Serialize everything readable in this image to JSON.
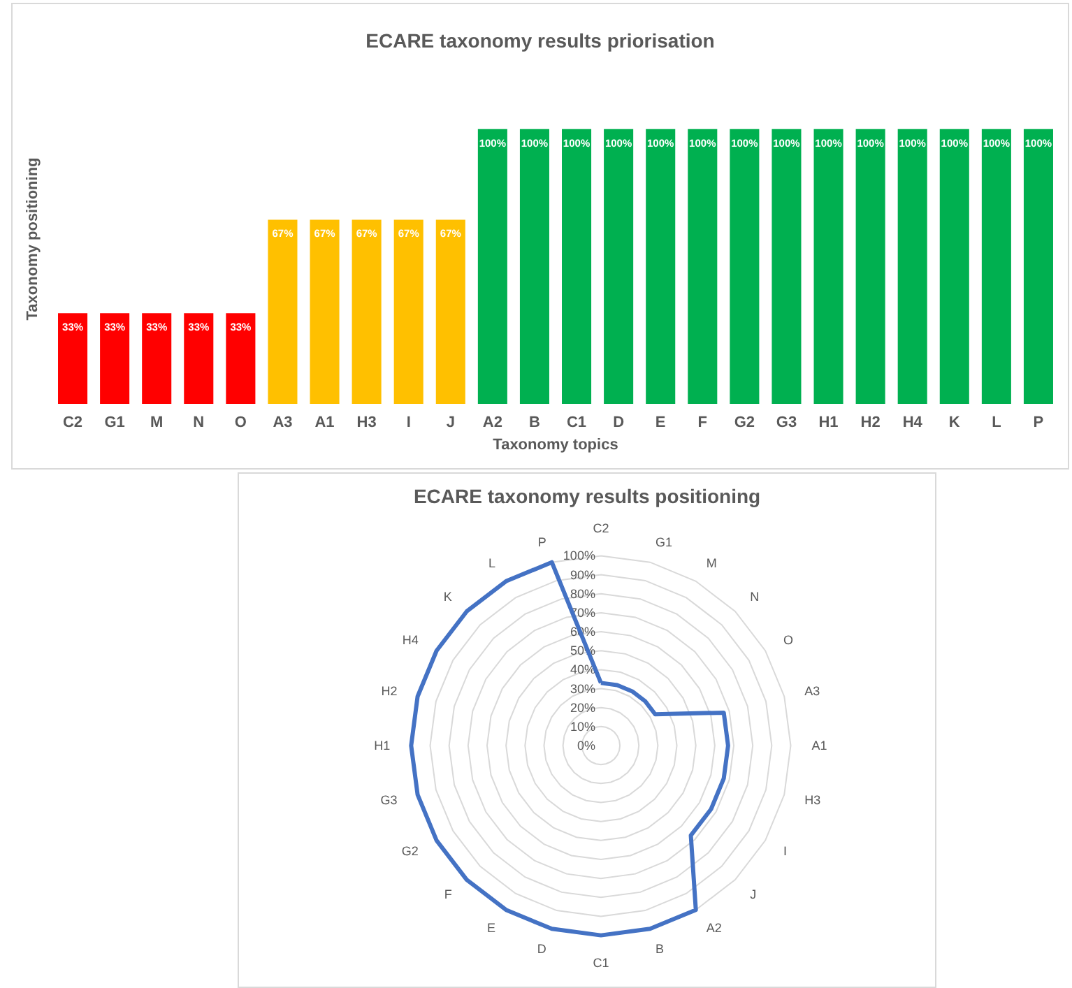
{
  "chart_data": [
    {
      "type": "bar",
      "title": "ECARE taxonomy results priorisation",
      "xlabel": "Taxonomy topics",
      "ylabel": "Taxonomy positioning",
      "categories": [
        "C2",
        "G1",
        "M",
        "N",
        "O",
        "A3",
        "A1",
        "H3",
        "I",
        "J",
        "A2",
        "B",
        "C1",
        "D",
        "E",
        "F",
        "G2",
        "G3",
        "H1",
        "H2",
        "H4",
        "K",
        "L",
        "P"
      ],
      "values": [
        33,
        33,
        33,
        33,
        33,
        67,
        67,
        67,
        67,
        67,
        100,
        100,
        100,
        100,
        100,
        100,
        100,
        100,
        100,
        100,
        100,
        100,
        100,
        100
      ],
      "value_labels": [
        "33%",
        "33%",
        "33%",
        "33%",
        "33%",
        "67%",
        "67%",
        "67%",
        "67%",
        "67%",
        "100%",
        "100%",
        "100%",
        "100%",
        "100%",
        "100%",
        "100%",
        "100%",
        "100%",
        "100%",
        "100%",
        "100%",
        "100%",
        "100%"
      ],
      "colors": [
        "#ff0000",
        "#ff0000",
        "#ff0000",
        "#ff0000",
        "#ff0000",
        "#ffc000",
        "#ffc000",
        "#ffc000",
        "#ffc000",
        "#ffc000",
        "#00b050",
        "#00b050",
        "#00b050",
        "#00b050",
        "#00b050",
        "#00b050",
        "#00b050",
        "#00b050",
        "#00b050",
        "#00b050",
        "#00b050",
        "#00b050",
        "#00b050",
        "#00b050"
      ],
      "tick_labels": "x",
      "grid": false
    },
    {
      "type": "radar",
      "title": "ECARE taxonomy results positioning",
      "categories": [
        "C2",
        "G1",
        "M",
        "N",
        "O",
        "A3",
        "A1",
        "H3",
        "I",
        "J",
        "A2",
        "B",
        "C1",
        "D",
        "E",
        "F",
        "G2",
        "G3",
        "H1",
        "H2",
        "H4",
        "K",
        "L",
        "P"
      ],
      "series": [
        {
          "color": "#4472c4",
          "values": [
            33,
            33,
            33,
            33,
            33,
            67,
            67,
            67,
            67,
            67,
            100,
            100,
            100,
            100,
            100,
            100,
            100,
            100,
            100,
            100,
            100,
            100,
            100,
            100
          ]
        }
      ],
      "ylim": [
        0,
        100
      ],
      "yticks": [
        {
          "value": 0,
          "label": "0%"
        },
        {
          "value": 10,
          "label": "10%"
        },
        {
          "value": 20,
          "label": "20%"
        },
        {
          "value": 30,
          "label": "30%"
        },
        {
          "value": 40,
          "label": "40%"
        },
        {
          "value": 50,
          "label": "50%"
        },
        {
          "value": 60,
          "label": "60%"
        },
        {
          "value": 70,
          "label": "70%"
        },
        {
          "value": 80,
          "label": "80%"
        },
        {
          "value": 90,
          "label": "90%"
        },
        {
          "value": 100,
          "label": "100%"
        }
      ],
      "grid": true,
      "marker": "none"
    }
  ]
}
